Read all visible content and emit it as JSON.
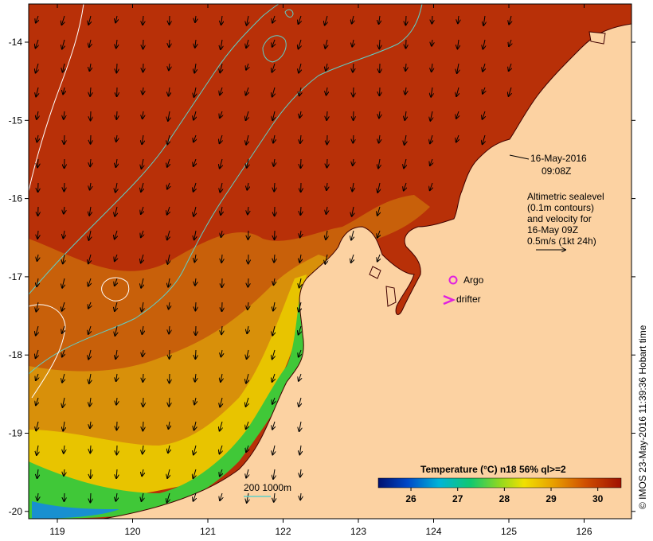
{
  "map": {
    "date_label": "16-May-2016",
    "time_label": "09:08Z",
    "legend_lines": [
      "Altimetric sealevel",
      "(0.1m contours)",
      "and velocity for",
      "16-May 09Z",
      "0.5m/s (1kt 24h)"
    ],
    "argo_label": "Argo",
    "drifter_label": "drifter",
    "isobath_label": "200  1000m",
    "credit": "© IMOS 23-May-2016 11:39:36 Hobart time",
    "colorbar": {
      "title": "Temperature (°C) n18 56% ql>=2",
      "ticks": [
        "26",
        "27",
        "28",
        "29",
        "30"
      ],
      "range": [
        25.3,
        30.5
      ]
    },
    "x_ticks": [
      "119",
      "120",
      "121",
      "122",
      "123",
      "124",
      "125",
      "126"
    ],
    "y_ticks": [
      "-14",
      "-15",
      "-16",
      "-17",
      "-18",
      "-19",
      "-20"
    ],
    "colors": {
      "land": "#fcd2a2",
      "sst_warm": "#b52a06",
      "sst_mid": "#c96a08",
      "sst_cool": "#e8c000",
      "sst_coast": "#3ec83a",
      "altimetry_contour": "#5fcfc8",
      "marker": "#e020e0"
    }
  }
}
